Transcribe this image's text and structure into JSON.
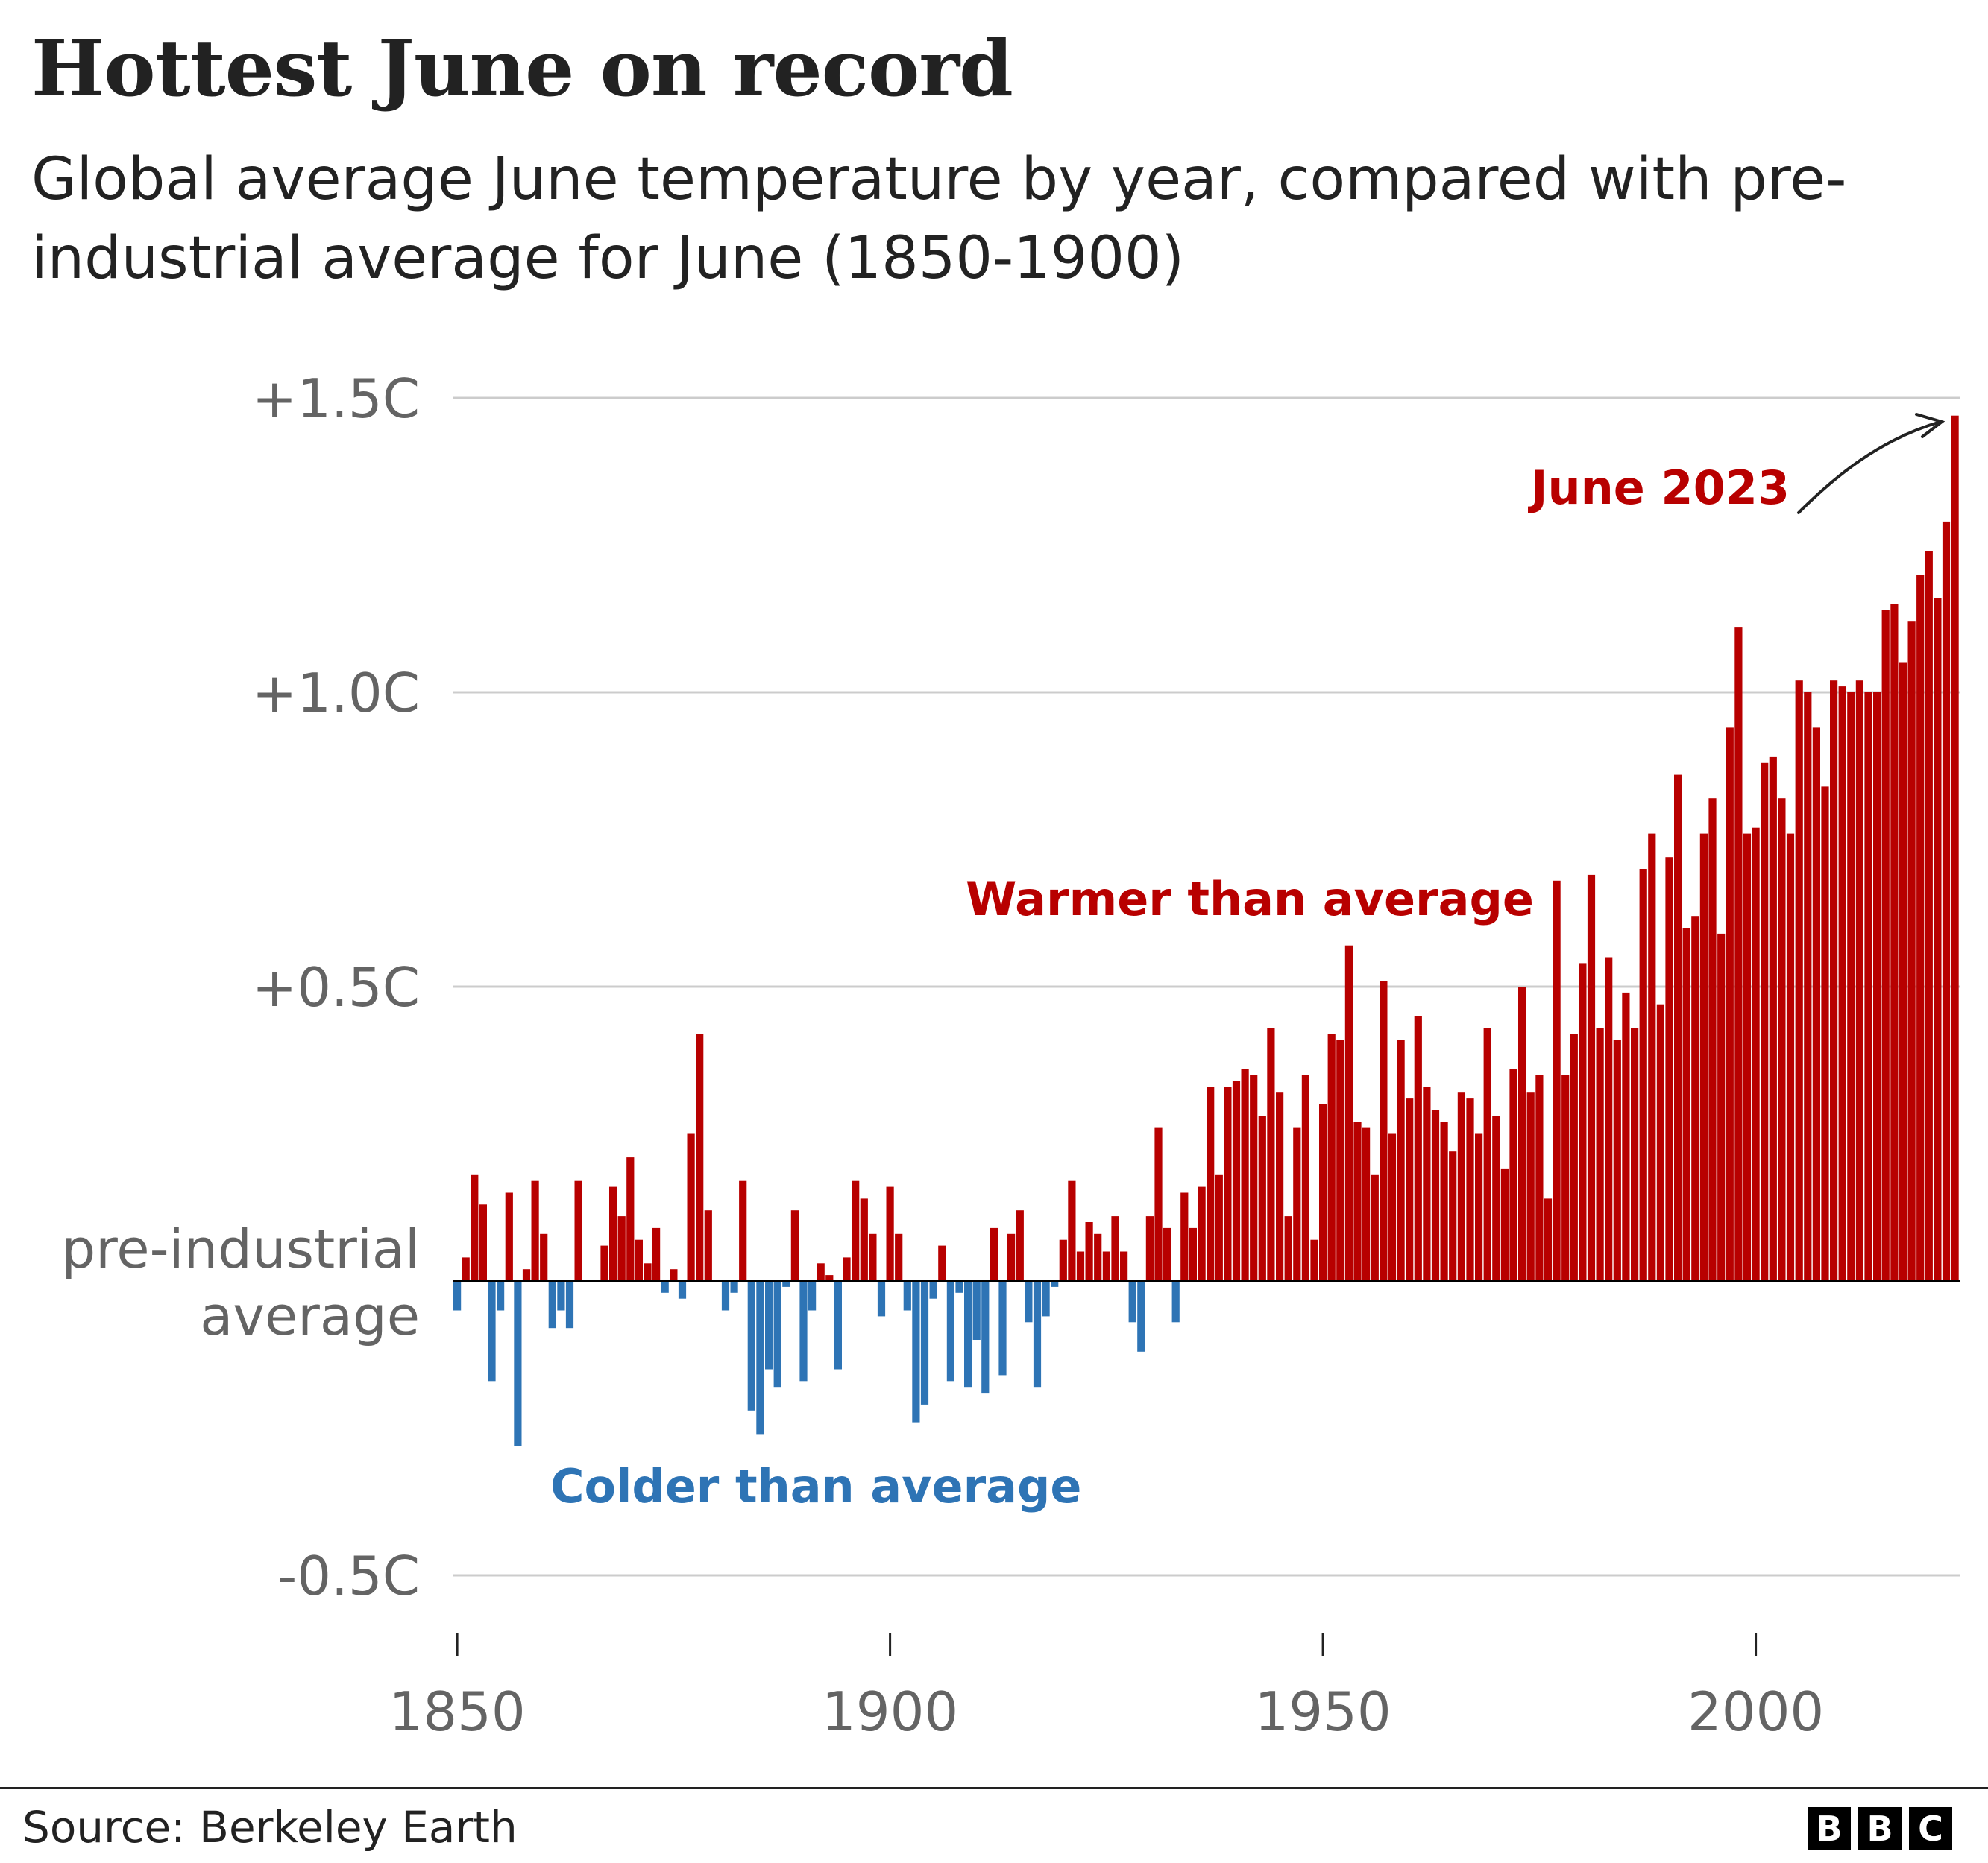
{
  "title": "Hottest June on record",
  "subtitle": "Global average June temperature by year, compared with pre-industrial average for June (1850-1900)",
  "footer": {
    "source": "Source: Berkeley Earth",
    "logo": [
      "B",
      "B",
      "C"
    ]
  },
  "colors": {
    "warm": "#b80000",
    "cold": "#2e74b5",
    "grid": "#cccccc",
    "text": "#222222",
    "axis_text": "#646464"
  },
  "chart_data": {
    "type": "bar",
    "title": "Hottest June on record",
    "xlabel": "",
    "ylabel": "",
    "ylim": [
      -0.5,
      1.5
    ],
    "grid": true,
    "y_ticks": [
      {
        "value": 1.5,
        "label": "+1.5C"
      },
      {
        "value": 1.0,
        "label": "+1.0C"
      },
      {
        "value": 0.5,
        "label": "+0.5C"
      },
      {
        "value": 0,
        "label": "pre-industrial",
        "label2": "average"
      },
      {
        "value": -0.5,
        "label": "-0.5C"
      }
    ],
    "x_ticks": [
      1850,
      1900,
      1950,
      2000
    ],
    "annotations": {
      "warmer": "Warmer than average",
      "colder": "Colder than average",
      "highlight": "June 2023"
    },
    "start_year": 1850,
    "end_year": 2023,
    "values": [
      -0.05,
      0.04,
      0.18,
      0.13,
      -0.17,
      -0.05,
      0.15,
      -0.28,
      0.02,
      0.17,
      0.08,
      -0.08,
      -0.05,
      -0.08,
      0.17,
      0.0,
      0.0,
      0.06,
      0.16,
      0.11,
      0.21,
      0.07,
      0.03,
      0.09,
      -0.02,
      0.02,
      -0.03,
      0.25,
      0.42,
      0.12,
      0.0,
      -0.05,
      -0.02,
      0.17,
      -0.22,
      -0.26,
      -0.15,
      -0.18,
      -0.01,
      0.12,
      -0.17,
      -0.05,
      0.03,
      0.01,
      -0.15,
      0.04,
      0.17,
      0.14,
      0.08,
      -0.06,
      0.16,
      0.08,
      -0.05,
      -0.24,
      -0.21,
      -0.03,
      0.06,
      -0.17,
      -0.02,
      -0.18,
      -0.1,
      -0.19,
      0.09,
      -0.16,
      0.08,
      0.12,
      -0.07,
      -0.18,
      -0.06,
      -0.01,
      0.07,
      0.17,
      0.05,
      0.1,
      0.08,
      0.05,
      0.11,
      0.05,
      -0.07,
      -0.12,
      0.11,
      0.26,
      0.09,
      -0.07,
      0.15,
      0.09,
      0.16,
      0.33,
      0.18,
      0.33,
      0.34,
      0.36,
      0.35,
      0.28,
      0.43,
      0.32,
      0.11,
      0.26,
      0.35,
      0.07,
      0.3,
      0.42,
      0.41,
      0.57,
      0.27,
      0.26,
      0.18,
      0.51,
      0.25,
      0.41,
      0.31,
      0.45,
      0.33,
      0.29,
      0.27,
      0.22,
      0.32,
      0.31,
      0.25,
      0.43,
      0.28,
      0.19,
      0.36,
      0.5,
      0.32,
      0.35,
      0.14,
      0.68,
      0.35,
      0.42,
      0.54,
      0.69,
      0.43,
      0.55,
      0.41,
      0.49,
      0.43,
      0.7,
      0.76,
      0.47,
      0.72,
      0.86,
      0.6,
      0.62,
      0.76,
      0.82,
      0.59,
      0.94,
      1.11,
      0.76,
      0.77,
      0.88,
      0.89,
      0.82,
      0.76,
      1.02,
      1.0,
      0.94,
      0.84,
      1.02,
      1.01,
      1.0,
      1.02,
      1.0,
      1.0,
      1.14,
      1.15,
      1.05,
      1.12,
      1.2,
      1.24,
      1.16,
      1.29,
      1.47
    ]
  }
}
